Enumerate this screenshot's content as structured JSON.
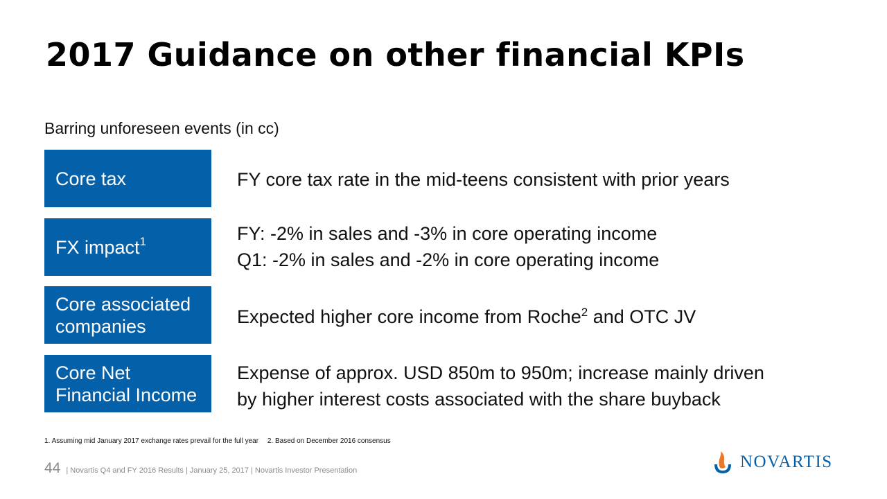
{
  "title": "2017 Guidance on other financial KPIs",
  "subtitle": "Barring unforeseen events (in cc)",
  "rows": [
    {
      "label": "Core tax",
      "lines": [
        "FY core tax rate in the mid-teens consistent with prior years"
      ]
    },
    {
      "label": "FX impact",
      "label_sup": "1",
      "lines": [
        "FY: -2% in sales and -3% in core operating income",
        "Q1: -2% in sales and -2% in core operating income"
      ]
    },
    {
      "label_lines": [
        "Core associated",
        "companies"
      ],
      "desc_pre": "Expected higher core income from Roche",
      "desc_sup": "2",
      "desc_post": " and OTC JV"
    },
    {
      "label_lines": [
        "Core Net",
        "Financial Income"
      ],
      "lines": [
        "Expense of approx. USD 850m to 950m; increase mainly driven",
        "by higher interest costs associated with the share buyback"
      ]
    }
  ],
  "footnotes": [
    "1. Assuming mid January 2017 exchange rates prevail for the full year",
    "2. Based on December 2016 consensus"
  ],
  "footer": {
    "page_number": "44",
    "text": "| Novartis Q4 and FY 2016 Results | January 25, 2017 | Novartis Investor Presentation"
  },
  "logo": {
    "wordmark": "NOVARTIS",
    "icon": "novartis-flame-icon"
  },
  "colors": {
    "box_blue": "#0460a9",
    "logo_orange": "#e8782c",
    "logo_blue": "#0460a9"
  }
}
